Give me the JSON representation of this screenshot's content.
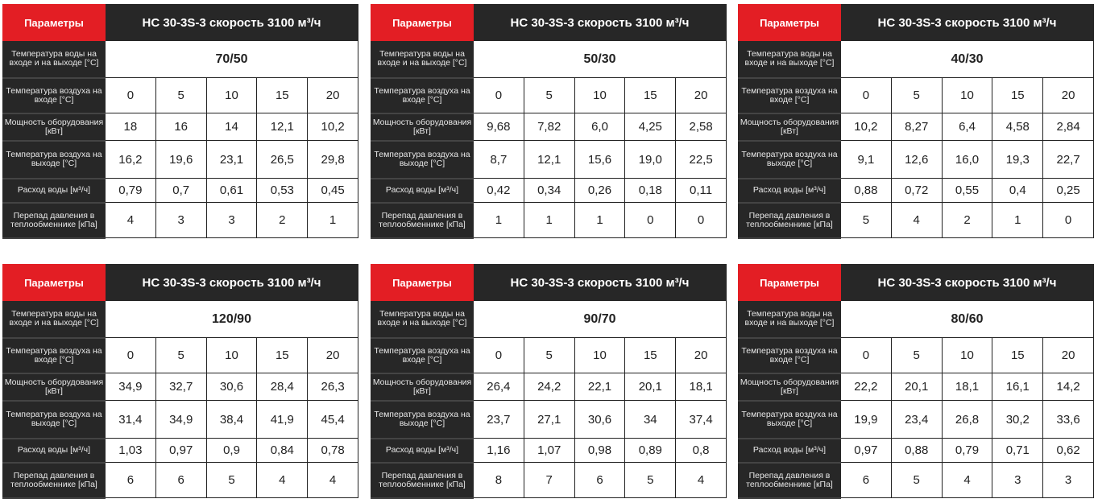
{
  "colors": {
    "accent": "#e31e24",
    "dark": "#272727"
  },
  "labels": {
    "params": "Параметры",
    "water_temp": "Температура воды на входе и на выходе [°C]",
    "air_in": "Температура воздуха на входе [°C]",
    "power": "Мощность оборудования [кВт]",
    "air_out": "Температура воздуха на выходе [°C]",
    "flow": "Расход воды [м³/ч]",
    "pressure": "Перепад давления в теплообменнике [кПа]"
  },
  "tables": [
    {
      "model": "НС 30-3S-3 скорость 3100 м³/ч",
      "water_temp": "70/50",
      "air_in": [
        "0",
        "5",
        "10",
        "15",
        "20"
      ],
      "power": [
        "18",
        "16",
        "14",
        "12,1",
        "10,2"
      ],
      "air_out": [
        "16,2",
        "19,6",
        "23,1",
        "26,5",
        "29,8"
      ],
      "flow": [
        "0,79",
        "0,7",
        "0,61",
        "0,53",
        "0,45"
      ],
      "pressure": [
        "4",
        "3",
        "3",
        "2",
        "1"
      ]
    },
    {
      "model": "НС 30-3S-3 скорость 3100 м³/ч",
      "water_temp": "50/30",
      "air_in": [
        "0",
        "5",
        "10",
        "15",
        "20"
      ],
      "power": [
        "9,68",
        "7,82",
        "6,0",
        "4,25",
        "2,58"
      ],
      "air_out": [
        "8,7",
        "12,1",
        "15,6",
        "19,0",
        "22,5"
      ],
      "flow": [
        "0,42",
        "0,34",
        "0,26",
        "0,18",
        "0,11"
      ],
      "pressure": [
        "1",
        "1",
        "1",
        "0",
        "0"
      ]
    },
    {
      "model": "НС 30-3S-3 скорость 3100 м³/ч",
      "water_temp": "40/30",
      "air_in": [
        "0",
        "5",
        "10",
        "15",
        "20"
      ],
      "power": [
        "10,2",
        "8,27",
        "6,4",
        "4,58",
        "2,84"
      ],
      "air_out": [
        "9,1",
        "12,6",
        "16,0",
        "19,3",
        "22,7"
      ],
      "flow": [
        "0,88",
        "0,72",
        "0,55",
        "0,4",
        "0,25"
      ],
      "pressure": [
        "5",
        "4",
        "2",
        "1",
        "0"
      ]
    },
    {
      "model": "НС 30-3S-3 скорость 3100 м³/ч",
      "water_temp": "120/90",
      "air_in": [
        "0",
        "5",
        "10",
        "15",
        "20"
      ],
      "power": [
        "34,9",
        "32,7",
        "30,6",
        "28,4",
        "26,3"
      ],
      "air_out": [
        "31,4",
        "34,9",
        "38,4",
        "41,9",
        "45,4"
      ],
      "flow": [
        "1,03",
        "0,97",
        "0,9",
        "0,84",
        "0,78"
      ],
      "pressure": [
        "6",
        "6",
        "5",
        "4",
        "4"
      ]
    },
    {
      "model": "НС 30-3S-3 скорость 3100 м³/ч",
      "water_temp": "90/70",
      "air_in": [
        "0",
        "5",
        "10",
        "15",
        "20"
      ],
      "power": [
        "26,4",
        "24,2",
        "22,1",
        "20,1",
        "18,1"
      ],
      "air_out": [
        "23,7",
        "27,1",
        "30,6",
        "34",
        "37,4"
      ],
      "flow": [
        "1,16",
        "1,07",
        "0,98",
        "0,89",
        "0,8"
      ],
      "pressure": [
        "8",
        "7",
        "6",
        "5",
        "4"
      ]
    },
    {
      "model": "НС 30-3S-3 скорость 3100 м³/ч",
      "water_temp": "80/60",
      "air_in": [
        "0",
        "5",
        "10",
        "15",
        "20"
      ],
      "power": [
        "22,2",
        "20,1",
        "18,1",
        "16,1",
        "14,2"
      ],
      "air_out": [
        "19,9",
        "23,4",
        "26,8",
        "30,2",
        "33,6"
      ],
      "flow": [
        "0,97",
        "0,88",
        "0,79",
        "0,71",
        "0,62"
      ],
      "pressure": [
        "6",
        "5",
        "4",
        "3",
        "3"
      ]
    }
  ]
}
